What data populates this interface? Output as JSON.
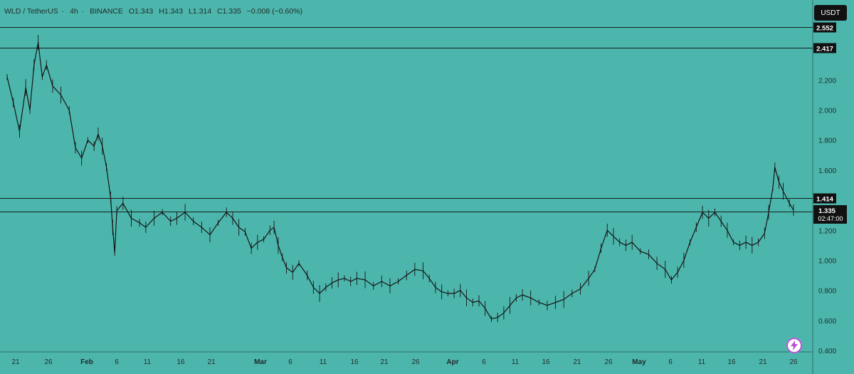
{
  "header": {
    "symbol": "WLD / TetherUS",
    "interval": "4h",
    "exchange": "BINANCE",
    "open": "O1.343",
    "high": "H1.343",
    "low": "L1.314",
    "close": "C1.335",
    "change": "−0.008 (−0.60%)"
  },
  "currency_label": "USDT",
  "colors": {
    "background": "#4db6ac",
    "price_line": "#1a1a1a",
    "label_bg": "#111111",
    "bolt_accent": "#b84fd6"
  },
  "icons": {
    "bolt": "lightning-bolt-icon"
  },
  "chart_data": {
    "type": "line",
    "ylim": [
      0.4,
      2.6
    ],
    "y_ticks": [
      "0.400",
      "0.600",
      "0.800",
      "1.000",
      "1.200",
      "1.400",
      "1.600",
      "1.800",
      "2.000",
      "2.200"
    ],
    "x_ticks": [
      {
        "label": "21",
        "bold": false
      },
      {
        "label": "26",
        "bold": false
      },
      {
        "label": "Feb",
        "bold": true
      },
      {
        "label": "6",
        "bold": false
      },
      {
        "label": "11",
        "bold": false
      },
      {
        "label": "16",
        "bold": false
      },
      {
        "label": "21",
        "bold": false
      },
      {
        "label": "Mar",
        "bold": true
      },
      {
        "label": "6",
        "bold": false
      },
      {
        "label": "11",
        "bold": false
      },
      {
        "label": "16",
        "bold": false
      },
      {
        "label": "21",
        "bold": false
      },
      {
        "label": "26",
        "bold": false
      },
      {
        "label": "Apr",
        "bold": true
      },
      {
        "label": "6",
        "bold": false
      },
      {
        "label": "11",
        "bold": false
      },
      {
        "label": "16",
        "bold": false
      },
      {
        "label": "21",
        "bold": false
      },
      {
        "label": "26",
        "bold": false
      },
      {
        "label": "May",
        "bold": true
      },
      {
        "label": "6",
        "bold": false
      },
      {
        "label": "11",
        "bold": false
      },
      {
        "label": "16",
        "bold": false
      },
      {
        "label": "21",
        "bold": false
      },
      {
        "label": "26",
        "bold": false
      }
    ],
    "horizontal_levels": [
      {
        "value": 2.552,
        "label": "2.552"
      },
      {
        "value": 2.417,
        "label": "2.417"
      },
      {
        "value": 1.414,
        "label": "1.414"
      },
      {
        "value": 1.326,
        "label": "1.326"
      }
    ],
    "current_price": {
      "value": 1.335,
      "label": "1.335",
      "countdown": "02:47:00"
    },
    "series": [
      {
        "points": [
          [
            0,
            2.22
          ],
          [
            3,
            2.05
          ],
          [
            6,
            1.86
          ],
          [
            9,
            2.15
          ],
          [
            11,
            2.0
          ],
          [
            13,
            2.3
          ],
          [
            15,
            2.45
          ],
          [
            17,
            2.22
          ],
          [
            19,
            2.3
          ],
          [
            22,
            2.16
          ],
          [
            26,
            2.1
          ],
          [
            30,
            2.0
          ],
          [
            33,
            1.75
          ],
          [
            36,
            1.68
          ],
          [
            39,
            1.8
          ],
          [
            42,
            1.76
          ],
          [
            44,
            1.84
          ],
          [
            46,
            1.76
          ],
          [
            48,
            1.62
          ],
          [
            50,
            1.42
          ],
          [
            51,
            1.22
          ],
          [
            52,
            1.05
          ],
          [
            53,
            1.33
          ],
          [
            56,
            1.38
          ],
          [
            60,
            1.28
          ],
          [
            64,
            1.25
          ],
          [
            67,
            1.22
          ],
          [
            71,
            1.28
          ],
          [
            75,
            1.32
          ],
          [
            79,
            1.26
          ],
          [
            82,
            1.28
          ],
          [
            86,
            1.32
          ],
          [
            90,
            1.26
          ],
          [
            94,
            1.22
          ],
          [
            98,
            1.17
          ],
          [
            102,
            1.25
          ],
          [
            106,
            1.32
          ],
          [
            109,
            1.28
          ],
          [
            112,
            1.22
          ],
          [
            115,
            1.19
          ],
          [
            118,
            1.08
          ],
          [
            121,
            1.12
          ],
          [
            124,
            1.14
          ],
          [
            127,
            1.2
          ],
          [
            129,
            1.22
          ],
          [
            131,
            1.1
          ],
          [
            133,
            1.02
          ],
          [
            135,
            0.95
          ],
          [
            138,
            0.92
          ],
          [
            141,
            0.98
          ],
          [
            145,
            0.9
          ],
          [
            148,
            0.82
          ],
          [
            151,
            0.78
          ],
          [
            154,
            0.82
          ],
          [
            157,
            0.85
          ],
          [
            160,
            0.87
          ],
          [
            163,
            0.88
          ],
          [
            166,
            0.86
          ],
          [
            169,
            0.88
          ],
          [
            173,
            0.87
          ],
          [
            177,
            0.83
          ],
          [
            181,
            0.86
          ],
          [
            185,
            0.83
          ],
          [
            189,
            0.86
          ],
          [
            193,
            0.9
          ],
          [
            197,
            0.94
          ],
          [
            201,
            0.93
          ],
          [
            204,
            0.88
          ],
          [
            207,
            0.82
          ],
          [
            210,
            0.79
          ],
          [
            213,
            0.78
          ],
          [
            216,
            0.78
          ],
          [
            219,
            0.8
          ],
          [
            222,
            0.75
          ],
          [
            225,
            0.72
          ],
          [
            228,
            0.73
          ],
          [
            231,
            0.68
          ],
          [
            234,
            0.61
          ],
          [
            237,
            0.62
          ],
          [
            240,
            0.65
          ],
          [
            243,
            0.7
          ],
          [
            246,
            0.75
          ],
          [
            249,
            0.77
          ],
          [
            253,
            0.75
          ],
          [
            257,
            0.72
          ],
          [
            261,
            0.7
          ],
          [
            265,
            0.72
          ],
          [
            269,
            0.74
          ],
          [
            273,
            0.78
          ],
          [
            277,
            0.81
          ],
          [
            281,
            0.88
          ],
          [
            284,
            0.94
          ],
          [
            287,
            1.08
          ],
          [
            290,
            1.2
          ],
          [
            293,
            1.16
          ],
          [
            296,
            1.12
          ],
          [
            299,
            1.1
          ],
          [
            302,
            1.12
          ],
          [
            306,
            1.06
          ],
          [
            310,
            1.04
          ],
          [
            314,
            0.98
          ],
          [
            318,
            0.94
          ],
          [
            321,
            0.87
          ],
          [
            324,
            0.92
          ],
          [
            327,
            1.0
          ],
          [
            330,
            1.12
          ],
          [
            333,
            1.22
          ],
          [
            336,
            1.32
          ],
          [
            339,
            1.28
          ],
          [
            342,
            1.32
          ],
          [
            345,
            1.26
          ],
          [
            348,
            1.2
          ],
          [
            351,
            1.12
          ],
          [
            354,
            1.1
          ],
          [
            357,
            1.12
          ],
          [
            360,
            1.1
          ],
          [
            363,
            1.12
          ],
          [
            366,
            1.18
          ],
          [
            368,
            1.32
          ],
          [
            370,
            1.48
          ],
          [
            371,
            1.62
          ],
          [
            373,
            1.52
          ],
          [
            375,
            1.46
          ],
          [
            378,
            1.38
          ],
          [
            380,
            1.335
          ]
        ]
      }
    ]
  }
}
